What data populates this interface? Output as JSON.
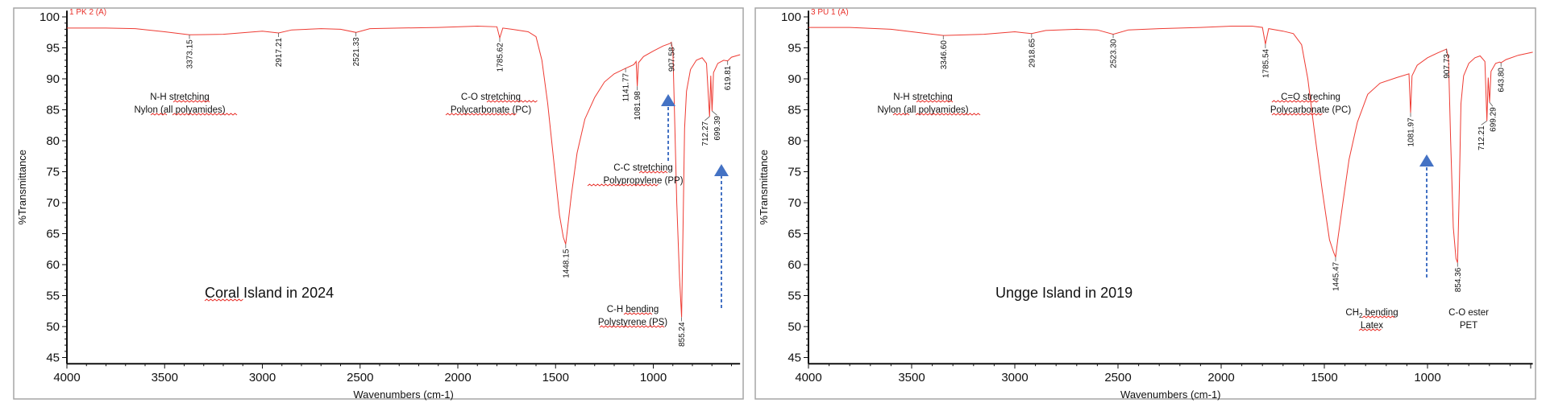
{
  "colors": {
    "spectrum": "#ee3b33",
    "arrow": "#4472c4",
    "axis": "#111111",
    "frame": "#a6a6a6",
    "squiggle": "#e8302a"
  },
  "chart_data": [
    {
      "type": "line",
      "sample_label": "1 PK 2 (A)",
      "caption": "Coral Island in 2024",
      "xlabel": "Wavenumbers (cm-1)",
      "ylabel": "%Transmittance",
      "xlim": [
        4000,
        556
      ],
      "ylim": [
        44,
        101
      ],
      "xticks": [
        "4000",
        "3500",
        "3000",
        "2500",
        "2000",
        "1500",
        "1000"
      ],
      "yticks": [
        "100",
        "95",
        "90",
        "85",
        "80",
        "75",
        "70",
        "65",
        "60",
        "55",
        "50",
        "45"
      ],
      "grid": false,
      "series": [
        {
          "name": "1 PK 2 (A)",
          "points": [
            [
              4000,
              98.2
            ],
            [
              3800,
              98.2
            ],
            [
              3650,
              98.1
            ],
            [
              3500,
              97.6
            ],
            [
              3373.15,
              97.1
            ],
            [
              3200,
              97.2
            ],
            [
              3000,
              97.7
            ],
            [
              2917.21,
              97.4
            ],
            [
              2850,
              97.9
            ],
            [
              2700,
              98.1
            ],
            [
              2600,
              98.0
            ],
            [
              2521.33,
              97.5
            ],
            [
              2450,
              98.1
            ],
            [
              2300,
              98.2
            ],
            [
              2100,
              98.3
            ],
            [
              1900,
              98.5
            ],
            [
              1800,
              98.4
            ],
            [
              1785.62,
              96.6
            ],
            [
              1770,
              98.2
            ],
            [
              1700,
              97.9
            ],
            [
              1640,
              97.6
            ],
            [
              1600,
              96.8
            ],
            [
              1570,
              93
            ],
            [
              1540,
              86
            ],
            [
              1510,
              77
            ],
            [
              1480,
              68
            ],
            [
              1460,
              64.4
            ],
            [
              1448.15,
              63.3
            ],
            [
              1440,
              65.5
            ],
            [
              1420,
              71
            ],
            [
              1390,
              78
            ],
            [
              1350,
              83.5
            ],
            [
              1300,
              87
            ],
            [
              1250,
              89.5
            ],
            [
              1200,
              90.8
            ],
            [
              1141.77,
              91.7
            ],
            [
              1100,
              92.3
            ],
            [
              1088,
              92.8
            ],
            [
              1081.98,
              88.8
            ],
            [
              1076,
              92.6
            ],
            [
              1050,
              93.6
            ],
            [
              1000,
              94.5
            ],
            [
              950,
              95.3
            ],
            [
              915,
              95.7
            ],
            [
              907.58,
              95.9
            ],
            [
              900,
              94.5
            ],
            [
              892,
              85
            ],
            [
              880,
              70
            ],
            [
              866,
              58
            ],
            [
              855.24,
              51.5
            ],
            [
              848,
              66
            ],
            [
              840,
              82
            ],
            [
              830,
              88
            ],
            [
              810,
              91.5
            ],
            [
              780,
              93
            ],
            [
              750,
              93.4
            ],
            [
              728,
              92.5
            ],
            [
              712.27,
              83.9
            ],
            [
              706,
              90.5
            ],
            [
              699.39,
              84.8
            ],
            [
              692,
              91
            ],
            [
              670,
              92.5
            ],
            [
              640,
              93
            ],
            [
              619.81,
              92.9
            ],
            [
              600,
              93.5
            ],
            [
              556,
              93.9
            ]
          ]
        }
      ],
      "peaks": [
        {
          "label": "3373.15",
          "x": 3373.15,
          "y": 97.1
        },
        {
          "label": "2917.21",
          "x": 2917.21,
          "y": 97.4
        },
        {
          "label": "2521.33",
          "x": 2521.33,
          "y": 97.5
        },
        {
          "label": "1785.62",
          "x": 1785.62,
          "y": 96.6
        },
        {
          "label": "1448.15",
          "x": 1448.15,
          "y": 63.3
        },
        {
          "label": "1141.77",
          "x": 1141.77,
          "y": 91.7
        },
        {
          "label": "1081.98",
          "x": 1081.98,
          "y": 88.8
        },
        {
          "label": "907.58",
          "x": 907.58,
          "y": 95.9
        },
        {
          "label": "855.24",
          "x": 855.24,
          "y": 51.5
        },
        {
          "label": "712.27",
          "x": 712.27,
          "y": 83.9
        },
        {
          "label": "699.39",
          "x": 699.39,
          "y": 84.8
        },
        {
          "label": "619.81",
          "x": 619.81,
          "y": 92.9
        }
      ],
      "annotations": [
        {
          "line1": "N-H stretching",
          "line2": "Nylon (all polyamides)"
        },
        {
          "line1": "C-O stretching",
          "line2": "Polycarbonate (PC)"
        },
        {
          "line1": "C-C stretching",
          "line2": "Polypropylene (PP)"
        },
        {
          "line1": "C-H bending",
          "line2": "Polystyrene (PS)"
        }
      ]
    },
    {
      "type": "line",
      "sample_label": "3 PU 1 (A)",
      "caption": "Ungge Island in 2019",
      "xlabel": "Wavenumbers (cm-1)",
      "ylabel": "%Transmittance",
      "xlim": [
        4000,
        490
      ],
      "ylim": [
        44,
        101
      ],
      "xticks": [
        "4000",
        "3500",
        "3000",
        "2500",
        "2000",
        "1500",
        "1000"
      ],
      "yticks": [
        "100",
        "95",
        "90",
        "85",
        "80",
        "75",
        "70",
        "65",
        "60",
        "55",
        "50",
        "45"
      ],
      "grid": false,
      "series": [
        {
          "name": "3 PU 1 (A)",
          "points": [
            [
              4000,
              98.3
            ],
            [
              3800,
              98.3
            ],
            [
              3600,
              98.0
            ],
            [
              3450,
              97.4
            ],
            [
              3346.6,
              97.0
            ],
            [
              3150,
              97.2
            ],
            [
              3000,
              97.6
            ],
            [
              2918.65,
              97.3
            ],
            [
              2850,
              97.8
            ],
            [
              2700,
              98.0
            ],
            [
              2600,
              97.9
            ],
            [
              2523.3,
              97.2
            ],
            [
              2450,
              97.9
            ],
            [
              2300,
              98.1
            ],
            [
              2100,
              98.3
            ],
            [
              1950,
              98.5
            ],
            [
              1850,
              98.5
            ],
            [
              1800,
              98.3
            ],
            [
              1785.54,
              95.6
            ],
            [
              1770,
              98.1
            ],
            [
              1700,
              97.7
            ],
            [
              1650,
              97.3
            ],
            [
              1610,
              95.5
            ],
            [
              1580,
              90
            ],
            [
              1550,
              82
            ],
            [
              1510,
              72
            ],
            [
              1475,
              64
            ],
            [
              1455,
              62
            ],
            [
              1445.47,
              61.2
            ],
            [
              1435,
              64
            ],
            [
              1410,
              70
            ],
            [
              1380,
              77
            ],
            [
              1340,
              83
            ],
            [
              1290,
              87.5
            ],
            [
              1230,
              89.3
            ],
            [
              1150,
              90.2
            ],
            [
              1090,
              90.8
            ],
            [
              1081.97,
              84.5
            ],
            [
              1075,
              90.5
            ],
            [
              1050,
              92.2
            ],
            [
              1000,
              93.4
            ],
            [
              950,
              94.2
            ],
            [
              915,
              94.7
            ],
            [
              907.73,
              94.8
            ],
            [
              898,
              93
            ],
            [
              888,
              80
            ],
            [
              875,
              66
            ],
            [
              862,
              61
            ],
            [
              854.36,
              60.3
            ],
            [
              846,
              72
            ],
            [
              838,
              86
            ],
            [
              825,
              90.5
            ],
            [
              800,
              92.5
            ],
            [
              770,
              93.4
            ],
            [
              745,
              93.7
            ],
            [
              722,
              92.8
            ],
            [
              712.21,
              83.2
            ],
            [
              706,
              90.2
            ],
            [
              699.29,
              86.2
            ],
            [
              692,
              91.2
            ],
            [
              670,
              92.5
            ],
            [
              650,
              92.7
            ],
            [
              643.8,
              92.6
            ],
            [
              620,
              93.1
            ],
            [
              560,
              93.8
            ],
            [
              490,
              94.3
            ]
          ]
        }
      ],
      "peaks": [
        {
          "label": "3346.60",
          "x": 3346.6,
          "y": 97.0
        },
        {
          "label": "2918.65",
          "x": 2918.65,
          "y": 97.3
        },
        {
          "label": "2523.30",
          "x": 2523.3,
          "y": 97.2
        },
        {
          "label": "1785.54",
          "x": 1785.54,
          "y": 95.6
        },
        {
          "label": "1445.47",
          "x": 1445.47,
          "y": 61.2
        },
        {
          "label": "1081.97",
          "x": 1081.97,
          "y": 84.5
        },
        {
          "label": "907.73",
          "x": 907.73,
          "y": 94.8
        },
        {
          "label": "854.36",
          "x": 854.36,
          "y": 60.3
        },
        {
          "label": "712.21",
          "x": 712.21,
          "y": 83.2
        },
        {
          "label": "699.29",
          "x": 699.29,
          "y": 86.2
        },
        {
          "label": "643.80",
          "x": 643.8,
          "y": 92.6
        }
      ],
      "annotations": [
        {
          "line1": "N-H stretching",
          "line2": "Nylon (all polyamides)"
        },
        {
          "line1": "C=O streching",
          "line2": "Polycarbonate (PC)"
        },
        {
          "line1_main": "CH",
          "line1_sub": "2",
          "line1": " bending",
          "line2": "Latex"
        },
        {
          "line1": "C-O ester",
          "line2": "PET"
        }
      ]
    }
  ]
}
